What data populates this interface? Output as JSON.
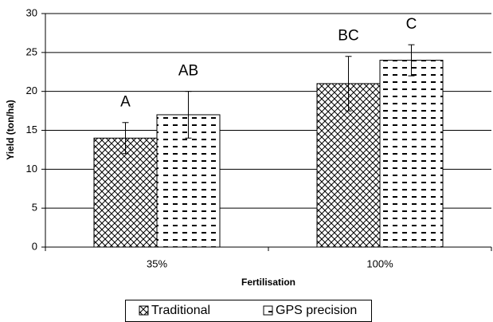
{
  "chart_data": {
    "type": "bar",
    "x_label": "Fertilisation",
    "y_label": "Yield (ton/ha)",
    "categories": [
      "35%",
      "100%"
    ],
    "series": [
      {
        "name": "Traditional",
        "color": "#000000",
        "pattern": "crosshatch",
        "values": [
          14,
          21
        ],
        "errors": [
          2,
          3.5
        ],
        "annotations": [
          "A",
          "BC"
        ]
      },
      {
        "name": "GPS precision",
        "color": "#000000",
        "pattern": "dashes",
        "values": [
          17,
          24
        ],
        "errors": [
          3,
          2
        ],
        "annotations": [
          "AB",
          "C"
        ]
      }
    ],
    "ylim": [
      0,
      30
    ],
    "yticks": [
      0,
      5,
      10,
      15,
      20,
      25,
      30
    ],
    "grid": true,
    "legend": "bottom"
  }
}
